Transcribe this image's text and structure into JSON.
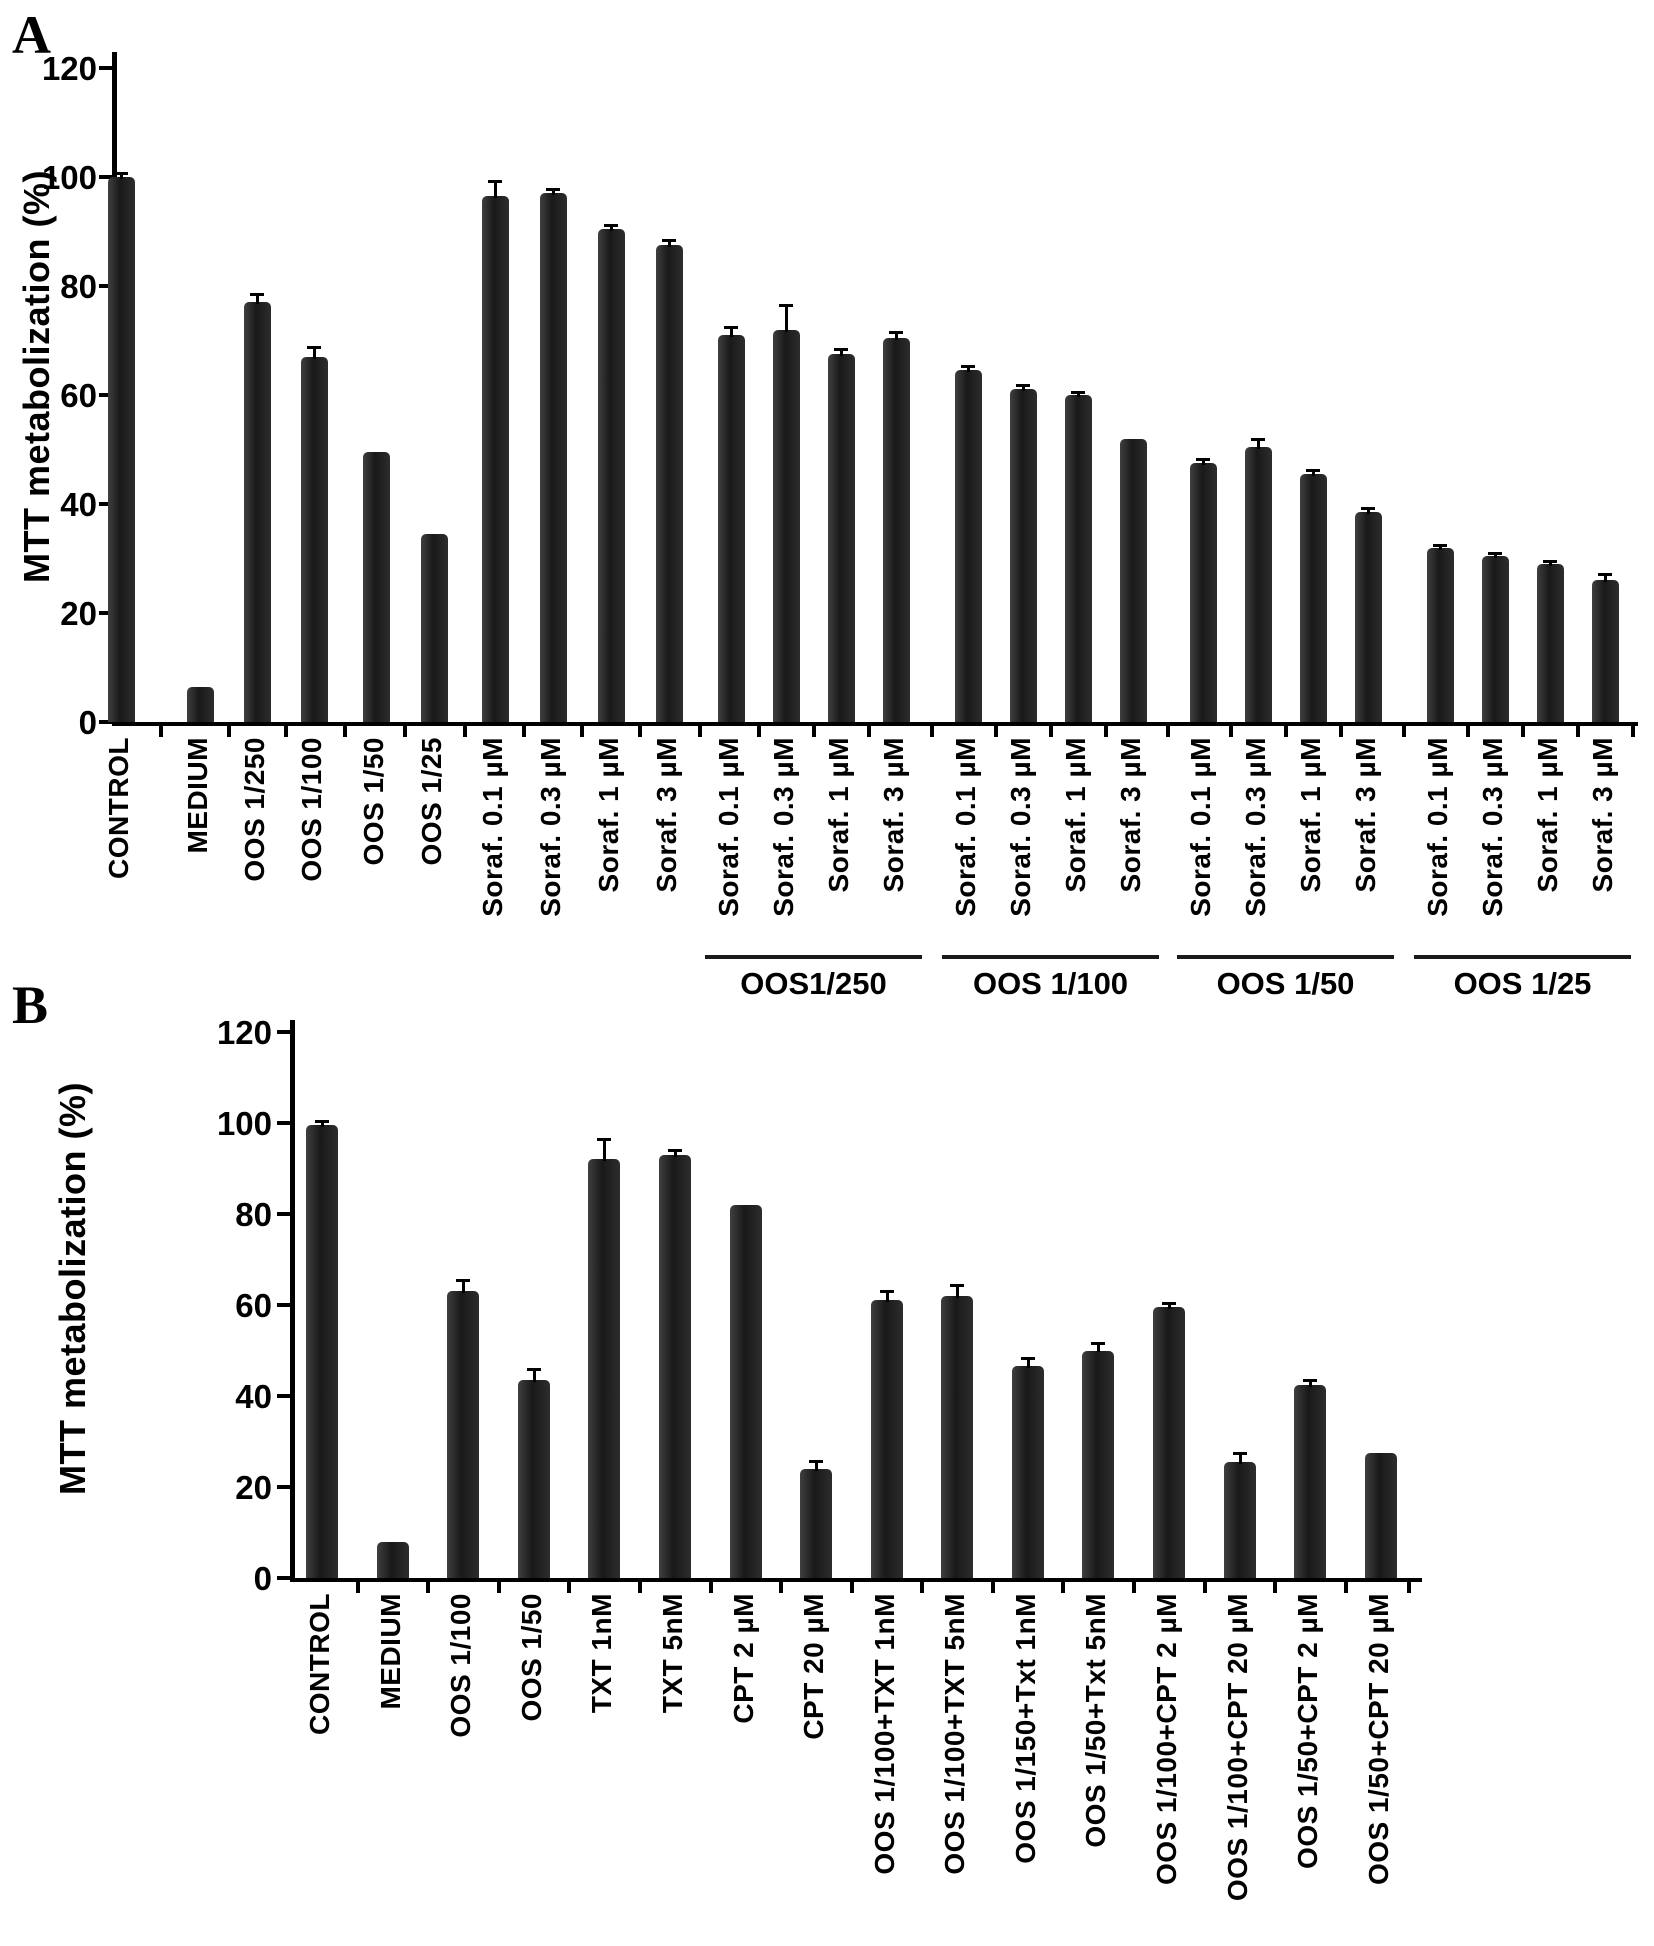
{
  "figure_title": "MTT metabolization bar charts",
  "chart_data": [
    {
      "panel": "A",
      "type": "bar",
      "title": "",
      "xlabel": "",
      "ylabel": "MTT metabolization (%)",
      "ylim": [
        0,
        120
      ],
      "yticks": [
        120,
        100,
        80,
        60,
        40,
        20,
        0
      ],
      "grid": "off",
      "legend": "none",
      "bar_color": "#222222",
      "categories": [
        "CONTROL",
        "MEDIUM",
        "OOS 1/250",
        "OOS 1/100",
        "OOS 1/50",
        "OOS 1/25",
        "Soraf. 0.1 µM",
        "Soraf. 0.3 µM",
        "Soraf. 1 µM",
        "Soraf. 3 µM",
        "Soraf. 0.1 µM",
        "Soraf. 0.3 µM",
        "Soraf. 1 µM",
        "Soraf. 3 µM",
        "Soraf. 0.1 µM",
        "Soraf. 0.3 µM",
        "Soraf. 1 µM",
        "Soraf. 3 µM",
        "Soraf. 0.1 µM",
        "Soraf. 0.3 µM",
        "Soraf. 1 µM",
        "Soraf. 3 µM",
        "Soraf. 0.1 µM",
        "Soraf. 0.3 µM",
        "Soraf. 1 µM",
        "Soraf. 3 µM"
      ],
      "values": [
        100,
        6.5,
        77,
        67,
        49.5,
        34.5,
        96.5,
        97,
        90.5,
        87.5,
        71,
        72,
        67.5,
        70.5,
        64.5,
        61,
        60,
        52,
        47.5,
        50.5,
        45.5,
        38.5,
        32,
        30.5,
        29,
        26
      ],
      "errors": [
        0.8,
        0,
        1.5,
        1.8,
        0,
        0,
        2.7,
        0.7,
        0.7,
        1,
        1.5,
        4.5,
        1,
        1,
        0.8,
        0.8,
        0.5,
        0,
        0.8,
        1.5,
        0.8,
        0.8,
        0.5,
        0.5,
        0.5,
        1.2
      ],
      "group_labels": [
        {
          "label": "OOS1/250",
          "start": 10,
          "end": 13
        },
        {
          "label": "OOS 1/100",
          "start": 14,
          "end": 17
        },
        {
          "label": "OOS 1/50",
          "start": 18,
          "end": 21
        },
        {
          "label": "OOS 1/25",
          "start": 22,
          "end": 25
        }
      ]
    },
    {
      "panel": "B",
      "type": "bar",
      "title": "",
      "xlabel": "",
      "ylabel": "MTT metabolization (%)",
      "ylim": [
        0,
        120
      ],
      "yticks": [
        120,
        100,
        80,
        60,
        40,
        20,
        0
      ],
      "grid": "off",
      "legend": "none",
      "bar_color": "#222222",
      "categories": [
        "CONTROL",
        "MEDIUM",
        "OOS 1/100",
        "OOS 1/50",
        "TXT 1nM",
        "TXT 5nM",
        "CPT 2 µM",
        "CPT 20 µM",
        "OOS 1/100+TXT 1nM",
        "OOS 1/100+TXT 5nM",
        "OOS 1/150+Txt 1nM",
        "OOS 1/50+Txt 5nM",
        "OOS 1/100+CPT 2 µM",
        "OOS 1/100+CPT 20 µM",
        "OOS 1/50+CPT 2 µM",
        "OOS 1/50+CPT 20 µM"
      ],
      "values": [
        99.5,
        8,
        63,
        43.5,
        92,
        93,
        82,
        24,
        61,
        62,
        46.5,
        50,
        59.5,
        25.5,
        42.5,
        27.5
      ],
      "errors": [
        1,
        0,
        2.5,
        2.5,
        4.5,
        1,
        0,
        1.8,
        2,
        2.5,
        1.8,
        1.7,
        1,
        2,
        1,
        0
      ],
      "group_labels": []
    }
  ]
}
